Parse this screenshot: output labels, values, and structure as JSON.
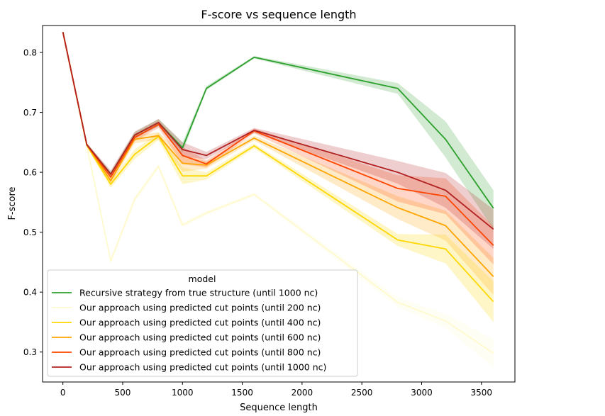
{
  "chart_data": {
    "type": "line",
    "title": "F-score vs sequence length",
    "xlabel": "Sequence length",
    "ylabel": "F-score",
    "xlim": [
      -170,
      3780
    ],
    "ylim": [
      0.25,
      0.845
    ],
    "xticks": [
      0,
      500,
      1000,
      1500,
      2000,
      2500,
      3000,
      3500
    ],
    "yticks": [
      0.3,
      0.4,
      0.5,
      0.6,
      0.7,
      0.8
    ],
    "grid": false,
    "legend": {
      "title": "model",
      "placement": "lower-left"
    },
    "series": [
      {
        "name": "Recursive strategy from true structure (until 1000 nc)",
        "color": "#2ca02c",
        "x": [
          0,
          200,
          400,
          600,
          800,
          1000,
          1200,
          1600,
          2800,
          3200,
          3600
        ],
        "y": [
          0.834,
          0.646,
          0.597,
          0.662,
          0.683,
          0.641,
          0.74,
          0.792,
          0.74,
          0.655,
          0.54
        ],
        "lower": [
          0.834,
          0.644,
          0.593,
          0.657,
          0.677,
          0.633,
          0.737,
          0.79,
          0.731,
          0.625,
          0.505
        ],
        "upper": [
          0.834,
          0.648,
          0.601,
          0.667,
          0.689,
          0.65,
          0.744,
          0.794,
          0.749,
          0.685,
          0.57
        ]
      },
      {
        "name": "Our approach using predicted cut points (until 200 nc)",
        "color": "#fffacd",
        "x": [
          0,
          200,
          400,
          600,
          800,
          1000,
          1200,
          1600,
          2800,
          3200,
          3600
        ],
        "y": [
          0.834,
          0.644,
          0.452,
          0.555,
          0.61,
          0.512,
          0.532,
          0.563,
          0.383,
          0.352,
          0.298
        ],
        "lower": [
          0.834,
          0.64,
          0.447,
          0.55,
          0.605,
          0.507,
          0.528,
          0.56,
          0.375,
          0.34,
          0.275
        ],
        "upper": [
          0.834,
          0.648,
          0.457,
          0.56,
          0.615,
          0.517,
          0.536,
          0.566,
          0.391,
          0.364,
          0.321
        ]
      },
      {
        "name": "Our approach using predicted cut points (until 400 nc)",
        "color": "#ffd700",
        "x": [
          0,
          200,
          400,
          600,
          800,
          1000,
          1200,
          1600,
          2800,
          3200,
          3600
        ],
        "y": [
          0.834,
          0.645,
          0.58,
          0.63,
          0.66,
          0.594,
          0.594,
          0.644,
          0.487,
          0.472,
          0.384
        ],
        "lower": [
          0.834,
          0.642,
          0.574,
          0.622,
          0.654,
          0.58,
          0.588,
          0.64,
          0.477,
          0.448,
          0.35
        ],
        "upper": [
          0.834,
          0.648,
          0.586,
          0.638,
          0.666,
          0.608,
          0.6,
          0.648,
          0.497,
          0.496,
          0.418
        ]
      },
      {
        "name": "Our approach using predicted cut points (until 600 nc)",
        "color": "#ffa500",
        "x": [
          0,
          200,
          400,
          600,
          800,
          1000,
          1200,
          1600,
          2800,
          3200,
          3600
        ],
        "y": [
          0.834,
          0.646,
          0.586,
          0.655,
          0.661,
          0.615,
          0.612,
          0.657,
          0.541,
          0.511,
          0.426
        ],
        "lower": [
          0.834,
          0.643,
          0.58,
          0.648,
          0.655,
          0.601,
          0.606,
          0.653,
          0.522,
          0.486,
          0.395
        ],
        "upper": [
          0.834,
          0.649,
          0.592,
          0.662,
          0.667,
          0.629,
          0.618,
          0.661,
          0.56,
          0.536,
          0.457
        ]
      },
      {
        "name": "Our approach using predicted cut points (until 800 nc)",
        "color": "#ff4500",
        "x": [
          0,
          200,
          400,
          600,
          800,
          1000,
          1200,
          1600,
          2800,
          3200,
          3600
        ],
        "y": [
          0.834,
          0.646,
          0.592,
          0.658,
          0.68,
          0.628,
          0.614,
          0.669,
          0.573,
          0.56,
          0.478
        ],
        "lower": [
          0.834,
          0.643,
          0.586,
          0.652,
          0.674,
          0.614,
          0.608,
          0.665,
          0.551,
          0.53,
          0.446
        ],
        "upper": [
          0.834,
          0.649,
          0.598,
          0.664,
          0.686,
          0.642,
          0.62,
          0.673,
          0.595,
          0.59,
          0.51
        ]
      },
      {
        "name": "Our approach using predicted cut points (until 1000 nc)",
        "color": "#b22222",
        "x": [
          0,
          200,
          400,
          600,
          800,
          1000,
          1200,
          1600,
          2800,
          3200,
          3600
        ],
        "y": [
          0.834,
          0.646,
          0.597,
          0.662,
          0.683,
          0.638,
          0.628,
          0.67,
          0.6,
          0.57,
          0.505
        ],
        "lower": [
          0.834,
          0.643,
          0.591,
          0.656,
          0.677,
          0.626,
          0.622,
          0.666,
          0.581,
          0.541,
          0.472
        ],
        "upper": [
          0.834,
          0.649,
          0.603,
          0.668,
          0.689,
          0.65,
          0.634,
          0.674,
          0.619,
          0.599,
          0.538
        ]
      }
    ]
  }
}
